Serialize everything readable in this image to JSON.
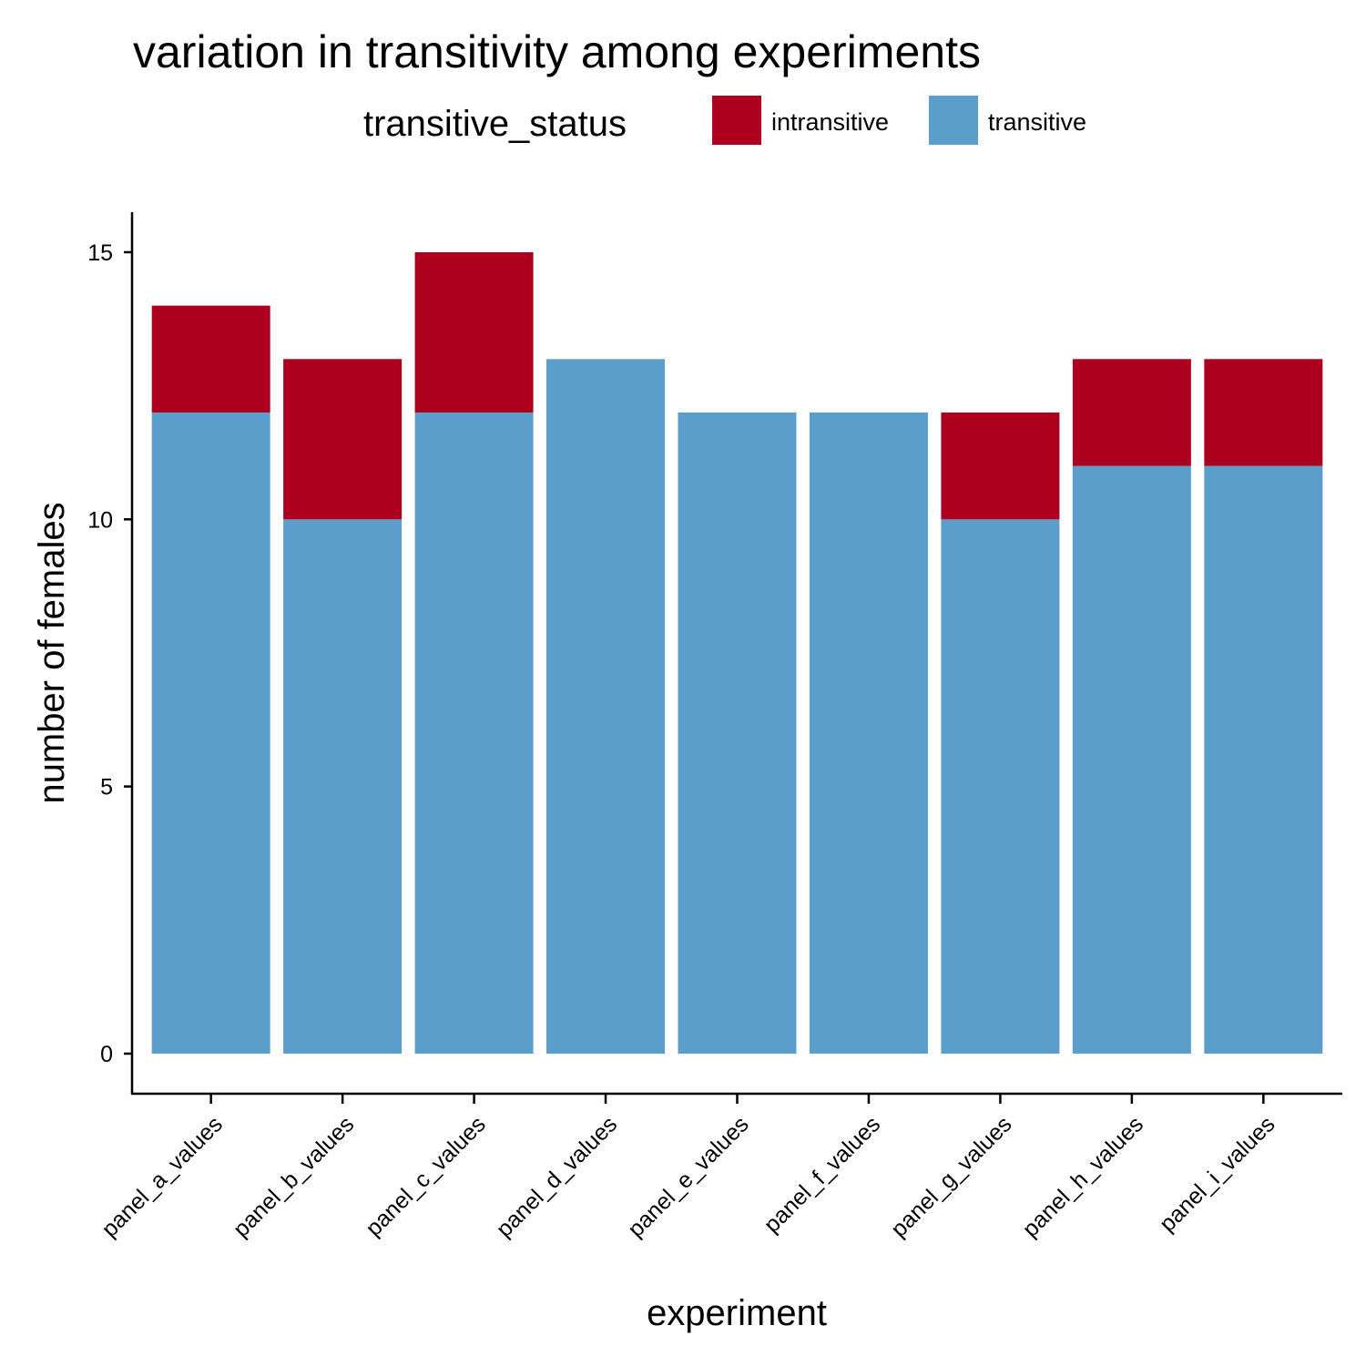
{
  "chart_data": {
    "type": "bar",
    "stacked": true,
    "title": "variation in transitivity among experiments",
    "xlabel": "experiment",
    "ylabel": "number of females",
    "ylim": [
      -0.75,
      15.75
    ],
    "yticks": [
      0,
      5,
      10,
      15
    ],
    "grid": false,
    "legend": {
      "title": "transitive_status",
      "position": "top",
      "entries": [
        "intransitive",
        "transitive"
      ]
    },
    "categories": [
      "panel_a_values",
      "panel_b_values",
      "panel_c_values",
      "panel_d_values",
      "panel_e_values",
      "panel_f_values",
      "panel_g_values",
      "panel_h_values",
      "panel_i_values"
    ],
    "series": [
      {
        "name": "transitive",
        "color": "#5b9ecb",
        "values": [
          12,
          10,
          12,
          13,
          12,
          12,
          10,
          11,
          11
        ]
      },
      {
        "name": "intransitive",
        "color": "#ac001e",
        "values": [
          2,
          3,
          3,
          0,
          0,
          0,
          2,
          2,
          2
        ]
      }
    ]
  }
}
